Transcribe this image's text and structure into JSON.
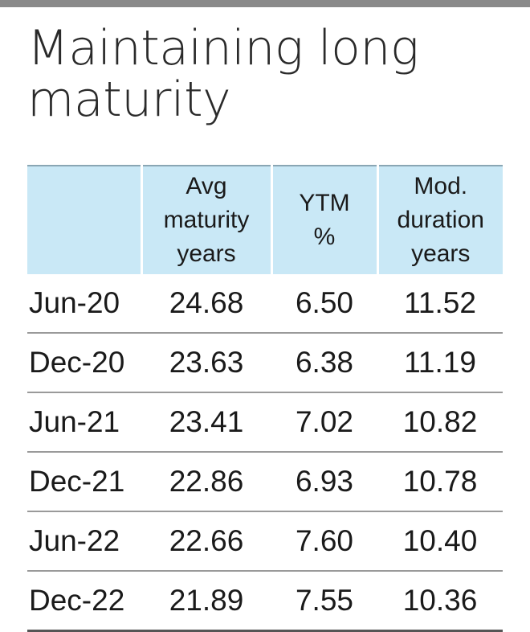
{
  "title": "Maintaining long maturity",
  "chart_data": {
    "type": "table",
    "columns": [
      "",
      [
        "Avg",
        "maturity",
        "years"
      ],
      [
        "YTM",
        "%"
      ],
      [
        "Mod.",
        "duration",
        "years"
      ]
    ],
    "rows": [
      {
        "label": "Jun-20",
        "values": [
          "24.68",
          "6.50",
          "11.52"
        ]
      },
      {
        "label": "Dec-20",
        "values": [
          "23.63",
          "6.38",
          "11.19"
        ]
      },
      {
        "label": "Jun-21",
        "values": [
          "23.41",
          "7.02",
          "10.82"
        ]
      },
      {
        "label": "Dec-21",
        "values": [
          "22.86",
          "6.93",
          "10.78"
        ]
      },
      {
        "label": "Jun-22",
        "values": [
          "22.66",
          "7.60",
          "10.40"
        ]
      },
      {
        "label": "Dec-22",
        "values": [
          "21.89",
          "7.55",
          "10.36"
        ]
      }
    ]
  },
  "colors": {
    "header_bg": "#c9e8f6",
    "top_bar": "#8a8a8a"
  }
}
